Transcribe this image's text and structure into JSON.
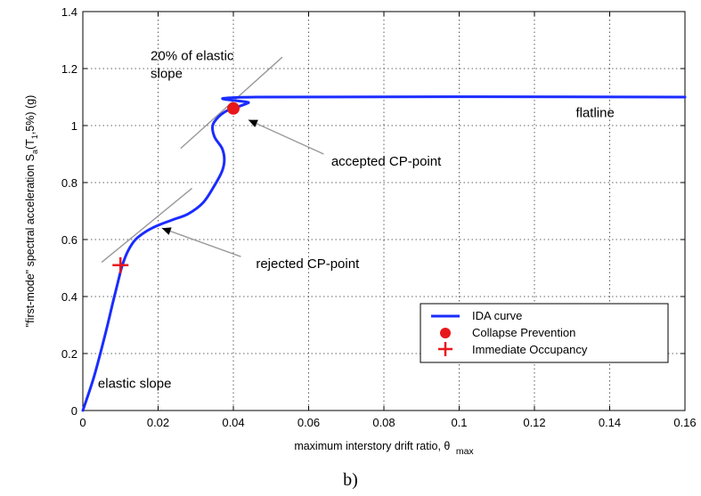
{
  "chart_data": {
    "type": "line",
    "xlabel": "maximum interstory drift ratio, θ",
    "xlabel_sub": "max",
    "ylabel": "\"first-mode\" spectral acceleration S",
    "ylabel_sub": "a",
    "ylabel_rest": "(T",
    "ylabel_sub2": "1",
    "ylabel_end": ",5%) (g)",
    "xlim": [
      0,
      0.16
    ],
    "ylim": [
      0,
      1.4
    ],
    "x_ticks": [
      0,
      0.02,
      0.04,
      0.06,
      0.08,
      0.1,
      0.12,
      0.14,
      0.16
    ],
    "x_tick_labels": [
      "0",
      "0.02",
      "0.04",
      "0.06",
      "0.08",
      "0.1",
      "0.12",
      "0.14",
      "0.16"
    ],
    "y_ticks": [
      0,
      0.2,
      0.4,
      0.6,
      0.8,
      1.0,
      1.2,
      1.4
    ],
    "y_tick_labels": [
      "0",
      "0.2",
      "0.4",
      "0.6",
      "0.8",
      "1",
      "1.2",
      "1.4"
    ],
    "grid": true,
    "legend_position": "bottom-right",
    "series": [
      {
        "name": "IDA curve",
        "color": "#1a2cff",
        "points": [
          [
            0.0,
            0.0
          ],
          [
            0.003,
            0.12
          ],
          [
            0.006,
            0.27
          ],
          [
            0.008,
            0.38
          ],
          [
            0.0095,
            0.46
          ],
          [
            0.0105,
            0.51
          ],
          [
            0.012,
            0.56
          ],
          [
            0.014,
            0.6
          ],
          [
            0.017,
            0.63
          ],
          [
            0.02,
            0.65
          ],
          [
            0.024,
            0.67
          ],
          [
            0.028,
            0.69
          ],
          [
            0.032,
            0.73
          ],
          [
            0.035,
            0.79
          ],
          [
            0.037,
            0.84
          ],
          [
            0.0376,
            0.88
          ],
          [
            0.037,
            0.92
          ],
          [
            0.035,
            0.96
          ],
          [
            0.0345,
            1.0
          ],
          [
            0.036,
            1.03
          ],
          [
            0.038,
            1.05
          ],
          [
            0.04,
            1.06
          ],
          [
            0.044,
            1.08
          ],
          [
            0.046,
            1.1
          ],
          [
            0.16,
            1.1
          ]
        ]
      },
      {
        "name": "Collapse Prevention",
        "color": "#e8171c",
        "marker": "circle",
        "points": [
          [
            0.04,
            1.06
          ]
        ]
      },
      {
        "name": "Immediate Occupancy",
        "color": "#e8171c",
        "marker": "plus",
        "points": [
          [
            0.01,
            0.51
          ]
        ]
      }
    ],
    "guide_lines": [
      {
        "color": "#999999",
        "points": [
          [
            0.026,
            0.92
          ],
          [
            0.053,
            1.24
          ]
        ]
      },
      {
        "color": "#999999",
        "points": [
          [
            0.005,
            0.52
          ],
          [
            0.029,
            0.78
          ]
        ]
      }
    ],
    "annotations": [
      {
        "id": "elastic20",
        "lines": [
          "20% of elastic",
          "slope"
        ],
        "at": [
          0.018,
          1.23
        ]
      },
      {
        "id": "flatline",
        "lines": [
          "flatline"
        ],
        "at": [
          0.131,
          1.03
        ]
      },
      {
        "id": "accepted",
        "lines": [
          "accepted CP-point"
        ],
        "at": [
          0.066,
          0.86
        ],
        "arrow_from": [
          0.064,
          0.9
        ],
        "arrow_to": [
          0.044,
          1.02
        ]
      },
      {
        "id": "rejected",
        "lines": [
          "rejected CP-point"
        ],
        "at": [
          0.046,
          0.5
        ],
        "arrow_from": [
          0.042,
          0.54
        ],
        "arrow_to": [
          0.021,
          0.64
        ]
      },
      {
        "id": "elastic",
        "lines": [
          "elastic slope"
        ],
        "at": [
          0.004,
          0.08
        ]
      }
    ]
  },
  "caption": "b)"
}
